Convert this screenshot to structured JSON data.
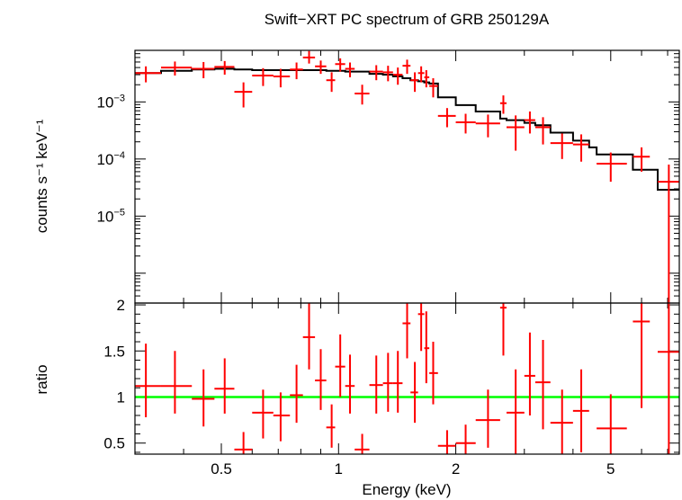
{
  "chart_data": [
    {
      "type": "step+errorbar",
      "title": "Swift−XRT PC spectrum of GRB 250129A",
      "ylabel": "counts s⁻¹ keV⁻¹",
      "xscale": "log",
      "yscale": "log",
      "xlim": [
        0.3,
        7.5
      ],
      "ylim": [
        3e-07,
        0.008
      ],
      "yticks": [
        {
          "value": 0.001,
          "base": "10",
          "exp": "−3"
        },
        {
          "value": 0.0001,
          "base": "10",
          "exp": "−4"
        },
        {
          "value": 1e-05,
          "base": "10",
          "exp": "−5"
        }
      ],
      "series": [
        {
          "kind": "data",
          "color": "#ff0000",
          "points": [
            {
              "x": 0.32,
              "xlo": 0.3,
              "xhi": 0.35,
              "y": 0.0032,
              "ylo": 0.0022,
              "yhi": 0.0042
            },
            {
              "x": 0.38,
              "xlo": 0.35,
              "xhi": 0.42,
              "y": 0.004,
              "ylo": 0.0029,
              "yhi": 0.0051
            },
            {
              "x": 0.45,
              "xlo": 0.42,
              "xhi": 0.48,
              "y": 0.0038,
              "ylo": 0.0026,
              "yhi": 0.005
            },
            {
              "x": 0.51,
              "xlo": 0.48,
              "xhi": 0.54,
              "y": 0.0041,
              "ylo": 0.003,
              "yhi": 0.0052
            },
            {
              "x": 0.57,
              "xlo": 0.54,
              "xhi": 0.6,
              "y": 0.0015,
              "ylo": 0.0008,
              "yhi": 0.0022
            },
            {
              "x": 0.64,
              "xlo": 0.6,
              "xhi": 0.68,
              "y": 0.0029,
              "ylo": 0.0019,
              "yhi": 0.0039
            },
            {
              "x": 0.71,
              "xlo": 0.68,
              "xhi": 0.75,
              "y": 0.0028,
              "ylo": 0.0018,
              "yhi": 0.0038
            },
            {
              "x": 0.78,
              "xlo": 0.75,
              "xhi": 0.81,
              "y": 0.0037,
              "ylo": 0.0025,
              "yhi": 0.0049
            },
            {
              "x": 0.84,
              "xlo": 0.81,
              "xhi": 0.87,
              "y": 0.006,
              "ylo": 0.0047,
              "yhi": 0.0078
            },
            {
              "x": 0.9,
              "xlo": 0.87,
              "xhi": 0.93,
              "y": 0.0042,
              "ylo": 0.0031,
              "yhi": 0.0053
            },
            {
              "x": 0.96,
              "xlo": 0.93,
              "xhi": 0.98,
              "y": 0.0024,
              "ylo": 0.0015,
              "yhi": 0.0033
            },
            {
              "x": 1.01,
              "xlo": 0.98,
              "xhi": 1.04,
              "y": 0.0046,
              "ylo": 0.0034,
              "yhi": 0.0058
            },
            {
              "x": 1.07,
              "xlo": 1.04,
              "xhi": 1.1,
              "y": 0.0038,
              "ylo": 0.0027,
              "yhi": 0.0049
            },
            {
              "x": 1.15,
              "xlo": 1.1,
              "xhi": 1.2,
              "y": 0.0014,
              "ylo": 0.0009,
              "yhi": 0.002
            },
            {
              "x": 1.25,
              "xlo": 1.2,
              "xhi": 1.3,
              "y": 0.0034,
              "ylo": 0.0024,
              "yhi": 0.0044
            },
            {
              "x": 1.34,
              "xlo": 1.3,
              "xhi": 1.38,
              "y": 0.0033,
              "ylo": 0.0023,
              "yhi": 0.0043
            },
            {
              "x": 1.42,
              "xlo": 1.38,
              "xhi": 1.46,
              "y": 0.003,
              "ylo": 0.002,
              "yhi": 0.004
            },
            {
              "x": 1.5,
              "xlo": 1.46,
              "xhi": 1.53,
              "y": 0.0043,
              "ylo": 0.0031,
              "yhi": 0.0055
            },
            {
              "x": 1.57,
              "xlo": 1.53,
              "xhi": 1.6,
              "y": 0.0024,
              "ylo": 0.0015,
              "yhi": 0.0033
            },
            {
              "x": 1.63,
              "xlo": 1.6,
              "xhi": 1.66,
              "y": 0.0032,
              "ylo": 0.0022,
              "yhi": 0.0042
            },
            {
              "x": 1.68,
              "xlo": 1.66,
              "xhi": 1.71,
              "y": 0.0027,
              "ylo": 0.0018,
              "yhi": 0.0036
            },
            {
              "x": 1.75,
              "xlo": 1.71,
              "xhi": 1.8,
              "y": 0.0019,
              "ylo": 0.0012,
              "yhi": 0.0026
            },
            {
              "x": 1.9,
              "xlo": 1.8,
              "xhi": 2.0,
              "y": 0.00057,
              "ylo": 0.00036,
              "yhi": 0.00078
            },
            {
              "x": 2.12,
              "xlo": 2.0,
              "xhi": 2.25,
              "y": 0.00044,
              "ylo": 0.00028,
              "yhi": 0.00062
            },
            {
              "x": 2.42,
              "xlo": 2.25,
              "xhi": 2.6,
              "y": 0.00042,
              "ylo": 0.00024,
              "yhi": 0.0006
            },
            {
              "x": 2.65,
              "xlo": 2.6,
              "xhi": 2.7,
              "y": 0.00095,
              "ylo": 0.00062,
              "yhi": 0.0013
            },
            {
              "x": 2.85,
              "xlo": 2.7,
              "xhi": 3.0,
              "y": 0.00036,
              "ylo": 0.00014,
              "yhi": 0.00058
            },
            {
              "x": 3.1,
              "xlo": 3.0,
              "xhi": 3.2,
              "y": 0.00048,
              "ylo": 0.00028,
              "yhi": 0.00068
            },
            {
              "x": 3.35,
              "xlo": 3.2,
              "xhi": 3.5,
              "y": 0.00036,
              "ylo": 0.00018,
              "yhi": 0.00054
            },
            {
              "x": 3.75,
              "xlo": 3.5,
              "xhi": 4.0,
              "y": 0.00019,
              "ylo": 0.0001,
              "yhi": 0.00028
            },
            {
              "x": 4.2,
              "xlo": 4.0,
              "xhi": 4.4,
              "y": 0.00018,
              "ylo": 9e-05,
              "yhi": 0.00027
            },
            {
              "x": 5.0,
              "xlo": 4.6,
              "xhi": 5.5,
              "y": 8.3e-05,
              "ylo": 4e-05,
              "yhi": 0.00013
            },
            {
              "x": 6.0,
              "xlo": 5.7,
              "xhi": 6.3,
              "y": 0.00011,
              "ylo": 6e-05,
              "yhi": 0.00016
            },
            {
              "x": 7.05,
              "xlo": 6.6,
              "xhi": 7.5,
              "y": 4e-05,
              "ylo": 3e-07,
              "yhi": 8e-05
            }
          ]
        },
        {
          "kind": "model",
          "color": "#000000",
          "edges": [
            0.3,
            0.35,
            0.42,
            0.48,
            0.54,
            0.6,
            0.68,
            0.75,
            0.81,
            0.87,
            0.93,
            0.98,
            1.04,
            1.1,
            1.2,
            1.3,
            1.38,
            1.46,
            1.53,
            1.6,
            1.66,
            1.71,
            1.8,
            2.0,
            2.25,
            2.6,
            2.7,
            3.0,
            3.2,
            3.5,
            4.0,
            4.4,
            4.6,
            5.5,
            5.7,
            6.3,
            6.6,
            7.5
          ],
          "values": [
            0.0032,
            0.0035,
            0.0037,
            0.0038,
            0.0037,
            0.0036,
            0.0036,
            0.0036,
            0.0036,
            0.0036,
            0.0035,
            0.0035,
            0.0034,
            0.0034,
            0.0031,
            0.003,
            0.0028,
            0.0026,
            0.0024,
            0.0023,
            0.0022,
            0.0021,
            0.0012,
            0.00088,
            0.00068,
            0.00051,
            0.00048,
            0.00043,
            0.00039,
            0.00029,
            0.00021,
            0.00016,
            0.00012,
            0.00012,
            6.5e-05,
            6.5e-05,
            2.9e-05
          ]
        }
      ]
    },
    {
      "type": "errorbar",
      "ylabel": "ratio",
      "xlabel": "Energy (keV)",
      "xscale": "log",
      "yscale": "linear",
      "xlim": [
        0.3,
        7.5
      ],
      "ylim": [
        0.38,
        2.02
      ],
      "yticks": [
        0.5,
        1,
        1.5,
        2
      ],
      "xticks": [
        0.5,
        1,
        2,
        5
      ],
      "reference_line": {
        "y": 1,
        "color": "#00ff00"
      },
      "series": [
        {
          "kind": "data",
          "color": "#ff0000",
          "points": [
            {
              "x": 0.32,
              "xlo": 0.3,
              "xhi": 0.35,
              "y": 1.12,
              "ylo": 0.78,
              "yhi": 1.58
            },
            {
              "x": 0.38,
              "xlo": 0.35,
              "xhi": 0.42,
              "y": 1.12,
              "ylo": 0.82,
              "yhi": 1.5
            },
            {
              "x": 0.45,
              "xlo": 0.42,
              "xhi": 0.48,
              "y": 0.98,
              "ylo": 0.68,
              "yhi": 1.3
            },
            {
              "x": 0.51,
              "xlo": 0.48,
              "xhi": 0.54,
              "y": 1.09,
              "ylo": 0.82,
              "yhi": 1.42
            },
            {
              "x": 0.57,
              "xlo": 0.54,
              "xhi": 0.6,
              "y": 0.43,
              "ylo": 0.25,
              "yhi": 0.62
            },
            {
              "x": 0.64,
              "xlo": 0.6,
              "xhi": 0.68,
              "y": 0.83,
              "ylo": 0.55,
              "yhi": 1.08
            },
            {
              "x": 0.71,
              "xlo": 0.68,
              "xhi": 0.75,
              "y": 0.8,
              "ylo": 0.52,
              "yhi": 1.05
            },
            {
              "x": 0.78,
              "xlo": 0.75,
              "xhi": 0.81,
              "y": 1.02,
              "ylo": 0.72,
              "yhi": 1.35
            },
            {
              "x": 0.84,
              "xlo": 0.81,
              "xhi": 0.87,
              "y": 1.65,
              "ylo": 1.3,
              "yhi": 2.05
            },
            {
              "x": 0.9,
              "xlo": 0.87,
              "xhi": 0.93,
              "y": 1.18,
              "ylo": 0.86,
              "yhi": 1.52
            },
            {
              "x": 0.96,
              "xlo": 0.93,
              "xhi": 0.98,
              "y": 0.67,
              "ylo": 0.45,
              "yhi": 0.92
            },
            {
              "x": 1.01,
              "xlo": 0.98,
              "xhi": 1.04,
              "y": 1.33,
              "ylo": 1.0,
              "yhi": 1.68
            },
            {
              "x": 1.07,
              "xlo": 1.04,
              "xhi": 1.1,
              "y": 1.12,
              "ylo": 0.82,
              "yhi": 1.46
            },
            {
              "x": 1.15,
              "xlo": 1.1,
              "xhi": 1.2,
              "y": 0.43,
              "ylo": 0.28,
              "yhi": 0.6
            },
            {
              "x": 1.25,
              "xlo": 1.2,
              "xhi": 1.3,
              "y": 1.13,
              "ylo": 0.82,
              "yhi": 1.45
            },
            {
              "x": 1.34,
              "xlo": 1.3,
              "xhi": 1.38,
              "y": 1.15,
              "ylo": 0.84,
              "yhi": 1.48
            },
            {
              "x": 1.42,
              "xlo": 1.38,
              "xhi": 1.46,
              "y": 1.15,
              "ylo": 0.83,
              "yhi": 1.5
            },
            {
              "x": 1.5,
              "xlo": 1.46,
              "xhi": 1.53,
              "y": 1.8,
              "ylo": 1.42,
              "yhi": 2.05
            },
            {
              "x": 1.57,
              "xlo": 1.53,
              "xhi": 1.6,
              "y": 1.05,
              "ylo": 0.72,
              "yhi": 1.38
            },
            {
              "x": 1.63,
              "xlo": 1.6,
              "xhi": 1.66,
              "y": 1.9,
              "ylo": 1.5,
              "yhi": 2.05
            },
            {
              "x": 1.68,
              "xlo": 1.66,
              "xhi": 1.71,
              "y": 1.53,
              "ylo": 1.15,
              "yhi": 1.93
            },
            {
              "x": 1.75,
              "xlo": 1.71,
              "xhi": 1.8,
              "y": 1.26,
              "ylo": 0.92,
              "yhi": 1.6
            },
            {
              "x": 1.9,
              "xlo": 1.8,
              "xhi": 2.0,
              "y": 0.47,
              "ylo": 0.3,
              "yhi": 0.64
            },
            {
              "x": 2.12,
              "xlo": 2.0,
              "xhi": 2.25,
              "y": 0.5,
              "ylo": 0.32,
              "yhi": 0.7
            },
            {
              "x": 2.42,
              "xlo": 2.25,
              "xhi": 2.6,
              "y": 0.75,
              "ylo": 0.45,
              "yhi": 1.08
            },
            {
              "x": 2.65,
              "xlo": 2.6,
              "xhi": 2.7,
              "y": 1.97,
              "ylo": 1.45,
              "yhi": 2.05
            },
            {
              "x": 2.85,
              "xlo": 2.7,
              "xhi": 3.0,
              "y": 0.83,
              "ylo": 0.38,
              "yhi": 1.3
            },
            {
              "x": 3.1,
              "xlo": 3.0,
              "xhi": 3.2,
              "y": 1.23,
              "ylo": 0.8,
              "yhi": 1.7
            },
            {
              "x": 3.35,
              "xlo": 3.2,
              "xhi": 3.5,
              "y": 1.16,
              "ylo": 0.65,
              "yhi": 1.62
            },
            {
              "x": 3.75,
              "xlo": 3.5,
              "xhi": 4.0,
              "y": 0.72,
              "ylo": 0.38,
              "yhi": 1.08
            },
            {
              "x": 4.2,
              "xlo": 4.0,
              "xhi": 4.4,
              "y": 0.85,
              "ylo": 0.4,
              "yhi": 1.3
            },
            {
              "x": 5.0,
              "xlo": 4.6,
              "xhi": 5.5,
              "y": 0.66,
              "ylo": 0.3,
              "yhi": 1.03
            },
            {
              "x": 6.0,
              "xlo": 5.7,
              "xhi": 6.3,
              "y": 1.82,
              "ylo": 0.88,
              "yhi": 2.05
            },
            {
              "x": 7.05,
              "xlo": 6.6,
              "xhi": 7.5,
              "y": 1.49,
              "ylo": 0.38,
              "yhi": 2.05
            }
          ]
        }
      ]
    }
  ]
}
